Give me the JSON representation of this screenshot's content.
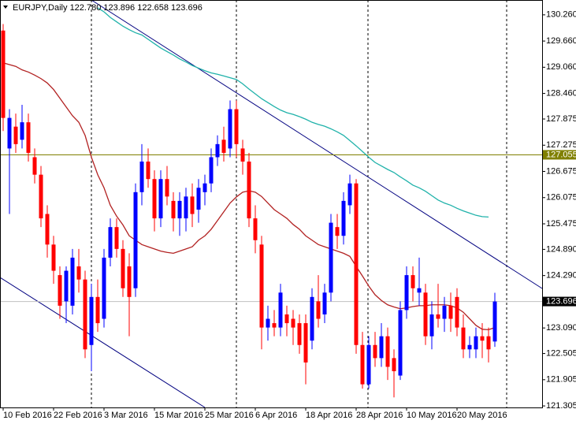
{
  "chart_data": {
    "type": "candlestick",
    "title": "EURJPY,Daily",
    "header_ohlc": [
      {
        "value": 122.78,
        "label": "122.780"
      },
      {
        "value": 123.896,
        "label": "123.896"
      },
      {
        "value": 122.658,
        "label": "122.658"
      },
      {
        "value": 123.696,
        "label": "123.696"
      }
    ],
    "categories": [
      "10 Feb 2016",
      null,
      null,
      null,
      null,
      null,
      null,
      null,
      "22 Feb 2016",
      null,
      null,
      null,
      null,
      null,
      null,
      null,
      "3 Mar 2016",
      null,
      null,
      null,
      null,
      null,
      null,
      null,
      "15 Mar 2016",
      null,
      null,
      null,
      null,
      null,
      null,
      null,
      "25 Mar 2016",
      null,
      null,
      null,
      null,
      null,
      null,
      null,
      "6 Apr 2016",
      null,
      null,
      null,
      null,
      null,
      null,
      null,
      "18 Apr 2016",
      null,
      null,
      null,
      null,
      null,
      null,
      null,
      "28 Apr 2016",
      null,
      null,
      null,
      null,
      null,
      null,
      null,
      "10 May 2016",
      null,
      null,
      null,
      null,
      null,
      null,
      null,
      "20 May 2016",
      null,
      null,
      null,
      null,
      null,
      null
    ],
    "open": [
      129.9,
      127.2,
      127.7,
      127.4,
      127.8,
      127.0,
      126.6,
      125.7,
      125.0,
      124.3,
      123.7,
      123.6,
      124.5,
      124.2,
      122.7,
      123.8,
      123.3,
      124.7,
      125.4,
      124.9,
      124.5,
      124.0,
      126.2,
      126.9,
      126.5,
      125.6,
      126.5,
      126.0,
      125.6,
      125.6,
      126.1,
      125.8,
      126.2,
      126.4,
      127.0,
      127.4,
      127.2,
      128.1,
      127.2,
      126.9,
      125.6,
      125.0,
      123.1,
      123.2,
      123.1,
      123.4,
      123.3,
      123.2,
      123.2,
      122.8,
      123.7,
      123.4,
      123.9,
      125.4,
      125.2,
      125.9,
      126.4,
      122.7,
      121.8,
      122.7,
      122.4,
      122.9,
      122.4,
      122.0,
      123.5,
      124.3,
      123.9,
      123.9,
      122.9,
      123.4,
      123.3,
      123.6,
      123.8,
      123.1,
      122.6,
      122.6,
      122.9,
      122.9,
      122.78
    ],
    "high": [
      130.05,
      128.1,
      128.0,
      128.2,
      128.0,
      127.2,
      126.8,
      125.9,
      125.2,
      124.5,
      124.5,
      124.9,
      124.9,
      124.4,
      124.1,
      124.2,
      124.9,
      125.6,
      125.6,
      125.1,
      124.8,
      126.4,
      127.3,
      127.2,
      126.7,
      126.7,
      126.8,
      126.2,
      126.2,
      126.3,
      126.4,
      126.5,
      126.6,
      127.2,
      127.5,
      127.7,
      128.3,
      128.3,
      127.4,
      127.1,
      125.9,
      125.2,
      123.6,
      123.5,
      124.1,
      123.6,
      123.5,
      123.4,
      123.4,
      124.0,
      124.3,
      124.1,
      125.7,
      125.7,
      126.2,
      126.6,
      126.5,
      123.0,
      122.9,
      123.0,
      123.2,
      123.1,
      122.6,
      123.7,
      124.5,
      124.5,
      124.7,
      124.1,
      123.7,
      124.1,
      123.8,
      123.9,
      124.0,
      123.4,
      122.9,
      123.1,
      123.2,
      123.1,
      123.896
    ],
    "low": [
      127.6,
      125.7,
      127.1,
      127.2,
      126.9,
      126.4,
      125.4,
      124.7,
      124.1,
      123.3,
      123.2,
      123.4,
      123.9,
      122.4,
      122.1,
      123.0,
      123.1,
      124.5,
      124.7,
      123.8,
      122.9,
      123.8,
      125.9,
      126.3,
      125.3,
      125.4,
      125.9,
      125.3,
      125.2,
      125.3,
      125.4,
      125.5,
      125.9,
      126.2,
      126.8,
      126.9,
      127.0,
      127.0,
      126.6,
      125.4,
      124.8,
      122.6,
      122.8,
      122.9,
      122.9,
      122.9,
      122.7,
      122.5,
      121.8,
      122.6,
      123.1,
      123.2,
      123.7,
      124.9,
      125.0,
      125.7,
      122.5,
      121.7,
      121.7,
      122.2,
      122.2,
      121.9,
      121.5,
      121.9,
      123.3,
      123.7,
      123.6,
      122.7,
      122.6,
      123.1,
      123.0,
      123.0,
      122.9,
      122.4,
      122.4,
      122.4,
      122.4,
      122.3,
      122.658
    ],
    "close": [
      127.9,
      127.9,
      127.3,
      127.8,
      127.1,
      126.6,
      125.6,
      125.0,
      124.4,
      123.6,
      124.4,
      124.7,
      124.2,
      122.6,
      123.8,
      123.2,
      124.7,
      125.4,
      124.9,
      124.0,
      123.8,
      126.2,
      126.9,
      126.5,
      125.6,
      126.5,
      126.1,
      125.6,
      126.0,
      126.1,
      125.7,
      126.3,
      126.4,
      127.0,
      127.3,
      127.1,
      128.1,
      127.3,
      126.9,
      125.6,
      125.1,
      123.1,
      123.3,
      123.1,
      123.9,
      123.2,
      123.1,
      122.7,
      122.3,
      123.8,
      123.3,
      123.9,
      125.5,
      125.2,
      126.0,
      126.4,
      122.7,
      121.8,
      122.7,
      122.4,
      122.9,
      122.2,
      122.1,
      123.5,
      124.3,
      124.0,
      124.0,
      122.9,
      123.4,
      123.3,
      123.6,
      123.3,
      123.1,
      122.6,
      122.7,
      122.9,
      122.8,
      122.6,
      123.696
    ],
    "up_color": "#0000ff",
    "down_color": "#ff0000",
    "series": [
      {
        "color": "#b22222",
        "values": [
          129.16,
          129.12,
          129.08,
          129.0,
          128.95,
          128.88,
          128.8,
          128.7,
          128.55,
          128.35,
          128.15,
          127.95,
          127.8,
          127.5,
          127.0,
          126.6,
          126.3,
          125.9,
          125.65,
          125.45,
          125.2,
          125.1,
          125.0,
          124.95,
          124.9,
          124.85,
          124.82,
          124.8,
          124.85,
          124.9,
          124.95,
          125.1,
          125.2,
          125.35,
          125.55,
          125.75,
          125.95,
          126.09,
          126.2,
          126.23,
          126.2,
          126.1,
          125.95,
          125.8,
          125.7,
          125.6,
          125.46,
          125.35,
          125.2,
          125.1,
          125.0,
          124.95,
          124.9,
          124.85,
          124.8,
          124.73,
          124.5,
          124.28,
          124.05,
          123.85,
          123.72,
          123.62,
          123.57,
          123.53,
          123.55,
          123.58,
          123.6,
          123.6,
          123.62,
          123.62,
          123.62,
          123.6,
          123.55,
          123.45,
          123.3,
          123.15,
          123.06,
          123.05,
          123.1
        ]
      },
      {
        "color": "#20b2aa",
        "values": [
          null,
          null,
          null,
          null,
          null,
          null,
          null,
          null,
          null,
          null,
          null,
          null,
          null,
          null,
          null,
          130.42,
          130.33,
          130.2,
          130.1,
          130.0,
          129.92,
          129.85,
          129.8,
          129.7,
          129.6,
          129.5,
          129.42,
          129.34,
          129.25,
          129.18,
          129.1,
          129.04,
          128.98,
          128.93,
          128.9,
          128.86,
          128.82,
          128.78,
          128.68,
          128.56,
          128.45,
          128.34,
          128.25,
          128.16,
          128.08,
          128.02,
          127.98,
          127.93,
          127.87,
          127.8,
          127.75,
          127.71,
          127.65,
          127.58,
          127.5,
          127.38,
          127.26,
          127.13,
          127.0,
          126.88,
          126.8,
          126.72,
          126.65,
          126.55,
          126.46,
          126.36,
          126.3,
          126.22,
          126.12,
          126.02,
          125.95,
          125.9,
          125.83,
          125.77,
          125.72,
          125.67,
          125.64,
          125.63,
          null
        ]
      }
    ],
    "ylim": [
      121.27,
      130.6
    ],
    "yticks": [
      {
        "value": 130.26,
        "label": "130.260"
      },
      {
        "value": 129.66,
        "label": "129.660"
      },
      {
        "value": 129.06,
        "label": "129.060"
      },
      {
        "value": 128.46,
        "label": "128.460"
      },
      {
        "value": 127.875,
        "label": "127.875"
      },
      {
        "value": 127.275,
        "label": "127.275"
      },
      {
        "value": 126.675,
        "label": "126.675"
      },
      {
        "value": 126.075,
        "label": "126.075"
      },
      {
        "value": 125.475,
        "label": "125.475"
      },
      {
        "value": 124.89,
        "label": "124.890"
      },
      {
        "value": 124.29,
        "label": "124.290"
      },
      {
        "value": 123.09,
        "label": "123.090"
      },
      {
        "value": 122.505,
        "label": "122.505"
      },
      {
        "value": 121.905,
        "label": "121.905"
      },
      {
        "value": 121.305,
        "label": "121.305"
      }
    ],
    "hline": {
      "value": 127.055,
      "label": "127.055",
      "color": "#808000"
    },
    "price_line": {
      "value": 123.696,
      "label": "123.696",
      "color": "#c0c0c0"
    }
  }
}
